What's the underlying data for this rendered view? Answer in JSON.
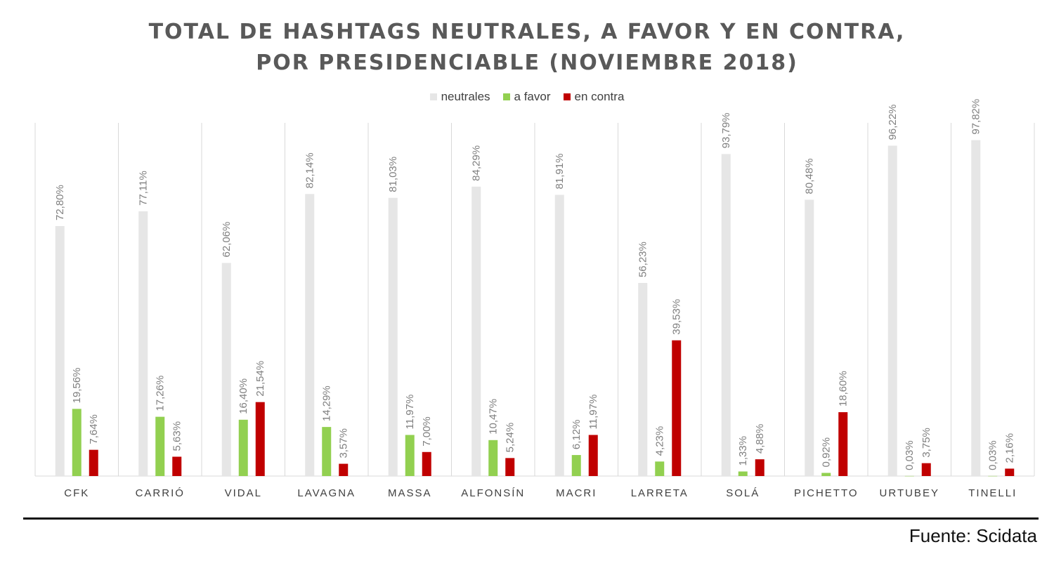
{
  "chart_data": {
    "type": "bar",
    "title_line1": "TOTAL DE HASHTAGS NEUTRALES, A FAVOR Y EN CONTRA,",
    "title_line2": "POR PRESIDENCIABLE (NOVIEMBRE 2018)",
    "categories": [
      "CFK",
      "CARRIÓ",
      "VIDAL",
      "LAVAGNA",
      "MASSA",
      "ALFONSÍN",
      "MACRI",
      "LARRETA",
      "SOLÁ",
      "PICHETTO",
      "URTUBEY",
      "TINELLI"
    ],
    "series": [
      {
        "name": "neutrales",
        "color": "#e6e6e6",
        "values": [
          72.8,
          77.11,
          62.06,
          82.14,
          81.03,
          84.29,
          81.91,
          56.23,
          93.79,
          80.48,
          96.22,
          97.82
        ],
        "labels": [
          "72,80%",
          "77,11%",
          "62,06%",
          "82,14%",
          "81,03%",
          "84,29%",
          "81,91%",
          "56,23%",
          "93,79%",
          "80,48%",
          "96,22%",
          "97,82%"
        ]
      },
      {
        "name": "a favor",
        "color": "#92d050",
        "values": [
          19.56,
          17.26,
          16.4,
          14.29,
          11.97,
          10.47,
          6.12,
          4.23,
          1.33,
          0.92,
          0.03,
          0.03
        ],
        "labels": [
          "19,56%",
          "17,26%",
          "16,40%",
          "14,29%",
          "11,97%",
          "10,47%",
          "6,12%",
          "4,23%",
          "1,33%",
          "0,92%",
          "0,03%",
          "0,03%"
        ]
      },
      {
        "name": "en contra",
        "color": "#c00000",
        "values": [
          7.64,
          5.63,
          21.54,
          3.57,
          7.0,
          5.24,
          11.97,
          39.53,
          4.88,
          18.6,
          3.75,
          2.16
        ],
        "labels": [
          "7,64%",
          "5,63%",
          "21,54%",
          "3,57%",
          "7,00%",
          "5,24%",
          "11,97%",
          "39,53%",
          "4,88%",
          "18,60%",
          "3,75%",
          "2,16%"
        ]
      }
    ],
    "ylim": [
      0,
      100
    ],
    "legend_position": "top-center",
    "grid": "vertical category separators"
  },
  "source": "Fuente: Scidata"
}
